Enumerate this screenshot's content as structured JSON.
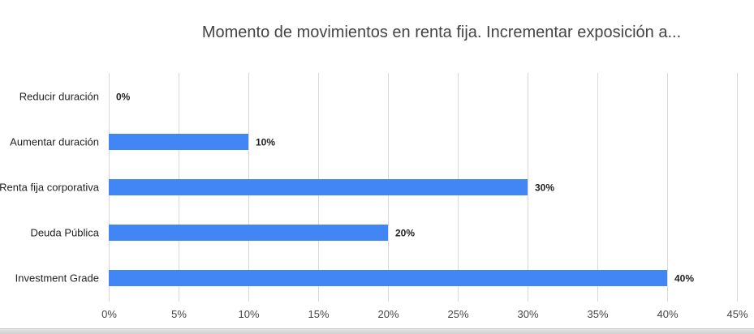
{
  "chart_data": {
    "type": "bar",
    "orientation": "horizontal",
    "title": "Momento de movimientos en renta fija. Incrementar exposición a...",
    "categories": [
      "Reducir duración",
      "Aumentar duración",
      "Renta fija corporativa",
      "Deuda Pública",
      "Investment Grade"
    ],
    "values": [
      0,
      10,
      30,
      20,
      40
    ],
    "value_labels": [
      "0%",
      "10%",
      "30%",
      "20%",
      "40%"
    ],
    "xlim": [
      0,
      45
    ],
    "xticks": [
      0,
      5,
      10,
      15,
      20,
      25,
      30,
      35,
      40,
      45
    ],
    "xtick_labels": [
      "0%",
      "5%",
      "10%",
      "15%",
      "20%",
      "25%",
      "30%",
      "35%",
      "40%",
      "45%"
    ],
    "grid": true,
    "legend": "none",
    "bar_color": "#4285f4"
  }
}
